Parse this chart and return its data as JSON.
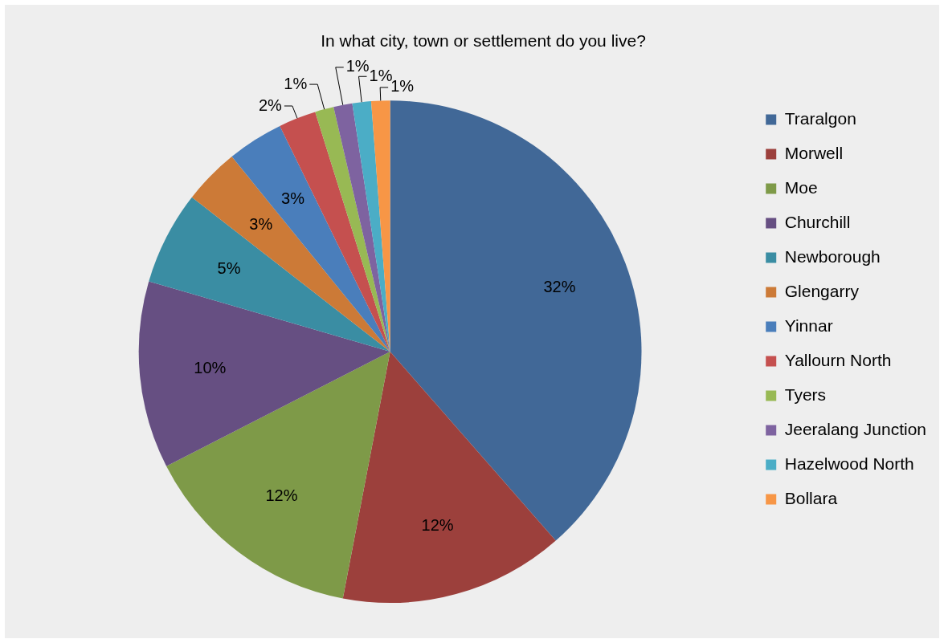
{
  "chart_data": {
    "type": "pie",
    "title": "In what city, town or settlement do you live?",
    "categories": [
      "Traralgon",
      "Morwell",
      "Moe",
      "Churchill",
      "Newborough",
      "Glengarry",
      "Yinnar",
      "Yallourn North",
      "Tyers",
      "Jeeralang Junction",
      "Hazelwood North",
      "Bollara"
    ],
    "values": [
      32,
      12,
      12,
      10,
      5,
      3,
      3,
      2,
      1,
      1,
      1,
      1
    ],
    "value_labels": [
      "32%",
      "12%",
      "12%",
      "10%",
      "5%",
      "3%",
      "3%",
      "2%",
      "1%",
      "1%",
      "1%",
      "1%"
    ],
    "colors": [
      "#416897",
      "#9c403c",
      "#7e9a48",
      "#664f82",
      "#3a8da3",
      "#cc7a37",
      "#4a7ebb",
      "#c5504f",
      "#98b954",
      "#7e63a0",
      "#4badc6",
      "#f79646"
    ],
    "legend": "right"
  }
}
